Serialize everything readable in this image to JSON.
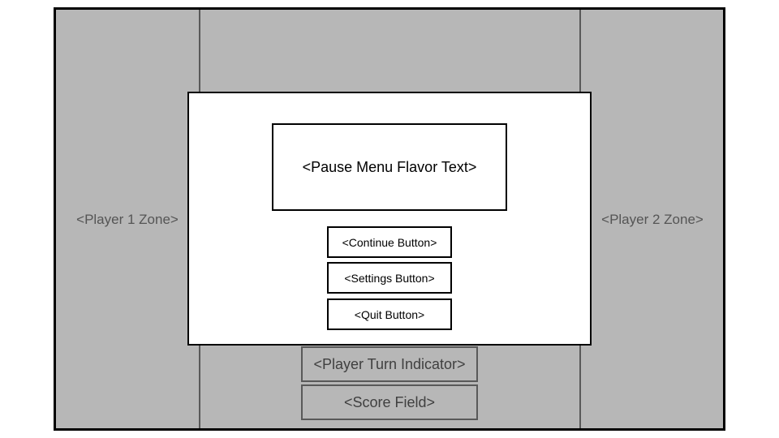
{
  "board": {
    "player1_zone": "<Player 1 Zone>",
    "player2_zone": "<Player 2 Zone>",
    "turn_indicator": "<Player Turn Indicator>",
    "score_field": "<Score Field>"
  },
  "pause_menu": {
    "flavor_text": "<Pause Menu Flavor Text>",
    "buttons": [
      {
        "label": "<Continue Button>"
      },
      {
        "label": "<Settings Button>"
      },
      {
        "label": "<Quit Button>"
      }
    ]
  },
  "colors": {
    "board_fill": "#b7b7b7",
    "zone_line": "#595959",
    "modal_fill": "#ffffff",
    "outline": "#000000"
  }
}
